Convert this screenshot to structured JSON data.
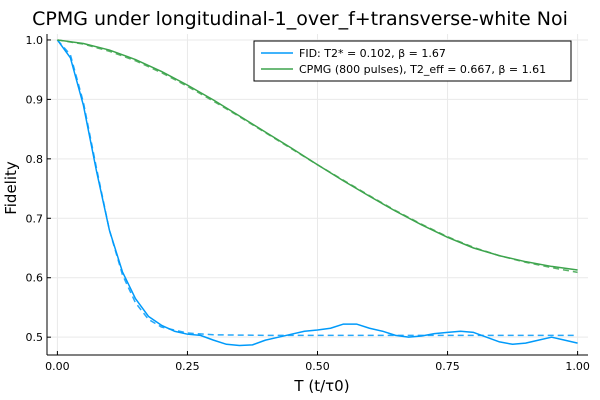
{
  "chart_data": {
    "type": "line",
    "title": "CPMG under longitudinal-1_over_f+transverse-white Noi",
    "xlabel": "T (t/τ0)",
    "ylabel": "Fidelity",
    "xlim": [
      -0.02,
      1.02
    ],
    "ylim": [
      0.47,
      1.01
    ],
    "xticks": [
      0.0,
      0.25,
      0.5,
      0.75,
      1.0
    ],
    "xtick_labels": [
      "0.00",
      "0.25",
      "0.50",
      "0.75",
      "1.00"
    ],
    "yticks": [
      0.5,
      0.6,
      0.7,
      0.8,
      0.9,
      1.0
    ],
    "ytick_labels": [
      "0.5",
      "0.6",
      "0.7",
      "0.8",
      "0.9",
      "1.0"
    ],
    "grid": true,
    "legend_position": "top-right",
    "colors": {
      "fid": "#009AFA",
      "cpmg": "#3DA44D",
      "axis": "#000000",
      "grid": "#e9e9e9"
    },
    "series": [
      {
        "name": "FID: T2* = 0.102, β = 1.67",
        "style": "solid",
        "x": [
          0,
          0.025,
          0.05,
          0.075,
          0.1,
          0.125,
          0.15,
          0.175,
          0.2,
          0.225,
          0.25,
          0.275,
          0.3,
          0.325,
          0.35,
          0.375,
          0.4,
          0.425,
          0.45,
          0.475,
          0.5,
          0.525,
          0.55,
          0.575,
          0.6,
          0.625,
          0.65,
          0.675,
          0.7,
          0.725,
          0.75,
          0.775,
          0.8,
          0.825,
          0.85,
          0.875,
          0.9,
          0.925,
          0.95,
          0.975,
          1.0
        ],
        "y": [
          1.0,
          0.97,
          0.89,
          0.78,
          0.68,
          0.61,
          0.565,
          0.535,
          0.52,
          0.51,
          0.505,
          0.503,
          0.495,
          0.488,
          0.486,
          0.487,
          0.495,
          0.5,
          0.505,
          0.51,
          0.512,
          0.515,
          0.522,
          0.522,
          0.515,
          0.51,
          0.503,
          0.5,
          0.502,
          0.506,
          0.508,
          0.51,
          0.508,
          0.5,
          0.492,
          0.488,
          0.49,
          0.495,
          0.5,
          0.495,
          0.49
        ]
      },
      {
        "name": "",
        "style": "dashed",
        "x": [
          0,
          0.025,
          0.05,
          0.075,
          0.1,
          0.125,
          0.15,
          0.175,
          0.2,
          0.25,
          0.3,
          0.4,
          0.5,
          0.6,
          0.7,
          0.8,
          0.9,
          1.0
        ],
        "y": [
          1.0,
          0.975,
          0.895,
          0.785,
          0.68,
          0.605,
          0.558,
          0.53,
          0.517,
          0.507,
          0.504,
          0.503,
          0.503,
          0.503,
          0.503,
          0.503,
          0.503,
          0.503
        ]
      },
      {
        "name": "CPMG (800 pulses), T2_eff = 0.667, β = 1.61",
        "style": "solid",
        "x": [
          0,
          0.05,
          0.1,
          0.15,
          0.2,
          0.25,
          0.3,
          0.35,
          0.4,
          0.45,
          0.5,
          0.55,
          0.6,
          0.65,
          0.7,
          0.75,
          0.8,
          0.85,
          0.9,
          0.95,
          1.0
        ],
        "y": [
          1.0,
          0.994,
          0.983,
          0.967,
          0.947,
          0.924,
          0.899,
          0.872,
          0.845,
          0.818,
          0.79,
          0.763,
          0.737,
          0.712,
          0.689,
          0.668,
          0.65,
          0.637,
          0.627,
          0.619,
          0.613
        ]
      },
      {
        "name": "",
        "style": "dashed",
        "x": [
          0,
          0.05,
          0.1,
          0.15,
          0.2,
          0.25,
          0.3,
          0.35,
          0.4,
          0.45,
          0.5,
          0.55,
          0.6,
          0.65,
          0.7,
          0.75,
          0.8,
          0.85,
          0.9,
          0.95,
          1.0
        ],
        "y": [
          1.0,
          0.993,
          0.981,
          0.965,
          0.945,
          0.922,
          0.897,
          0.871,
          0.844,
          0.817,
          0.79,
          0.764,
          0.738,
          0.713,
          0.69,
          0.669,
          0.651,
          0.637,
          0.626,
          0.617,
          0.609
        ]
      }
    ],
    "series_colors": [
      "#009AFA",
      "#009AFA",
      "#3DA44D",
      "#3DA44D"
    ]
  }
}
